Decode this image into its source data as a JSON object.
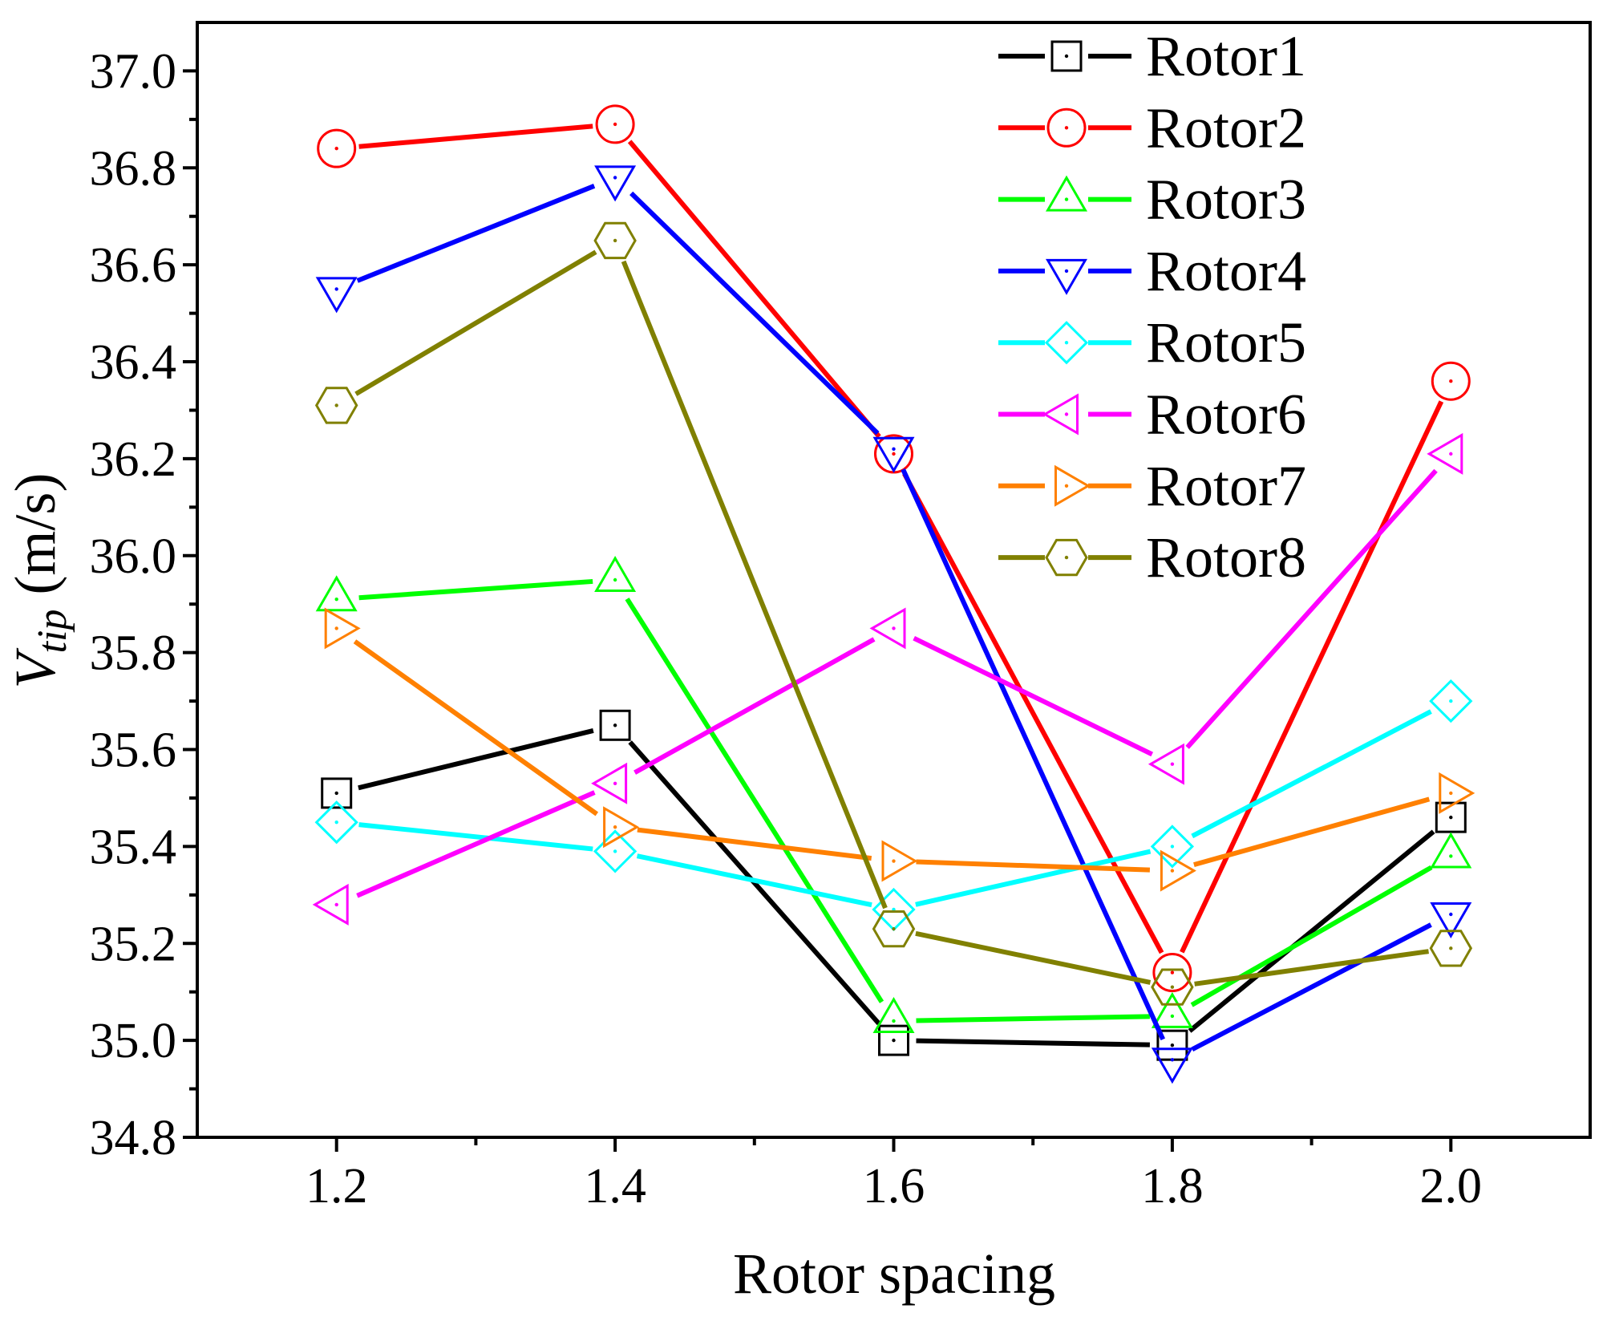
{
  "chart_data": {
    "type": "line",
    "xlabel": "Rotor spacing",
    "ylabel": {
      "symbol": "V",
      "subscript": "tip",
      "unit": "(m/s)"
    },
    "x": [
      1.2,
      1.4,
      1.6,
      1.8,
      2.0
    ],
    "xlim": [
      1.1,
      2.1
    ],
    "ylim": [
      34.8,
      37.1
    ],
    "xticks": [
      1.2,
      1.4,
      1.6,
      1.8,
      2.0
    ],
    "xtick_labels": [
      "1.2",
      "1.4",
      "1.6",
      "1.8",
      "2.0"
    ],
    "xminor_ticks": [
      1.3,
      1.5,
      1.7,
      1.9
    ],
    "yticks": [
      34.8,
      35.0,
      35.2,
      35.4,
      35.6,
      35.8,
      36.0,
      36.2,
      36.4,
      36.6,
      36.8,
      37.0
    ],
    "ytick_labels": [
      "34.8",
      "35.0",
      "35.2",
      "35.4",
      "35.6",
      "35.8",
      "36.0",
      "36.2",
      "36.4",
      "36.6",
      "36.8",
      "37.0"
    ],
    "yminor_ticks": [
      34.9,
      35.1,
      35.3,
      35.5,
      35.7,
      35.9,
      36.1,
      36.3,
      36.5,
      36.7,
      36.9
    ],
    "grid": false,
    "legend_position": "top-right",
    "series": [
      {
        "name": "Rotor1",
        "color": "#000000",
        "marker": "square",
        "values": [
          35.51,
          35.65,
          35.0,
          34.99,
          35.46
        ]
      },
      {
        "name": "Rotor2",
        "color": "#ff0000",
        "marker": "circle",
        "values": [
          36.84,
          36.89,
          36.21,
          35.14,
          36.36
        ]
      },
      {
        "name": "Rotor3",
        "color": "#00ff00",
        "marker": "triangle-up",
        "values": [
          35.91,
          35.95,
          35.04,
          35.05,
          35.38
        ]
      },
      {
        "name": "Rotor4",
        "color": "#0000ff",
        "marker": "triangle-down",
        "values": [
          36.55,
          36.78,
          36.22,
          34.96,
          35.26
        ]
      },
      {
        "name": "Rotor5",
        "color": "#00ffff",
        "marker": "diamond",
        "values": [
          35.45,
          35.39,
          35.27,
          35.4,
          35.7
        ]
      },
      {
        "name": "Rotor6",
        "color": "#ff00ff",
        "marker": "triangle-left",
        "values": [
          35.28,
          35.53,
          35.85,
          35.57,
          36.21
        ]
      },
      {
        "name": "Rotor7",
        "color": "#ff8000",
        "marker": "triangle-right",
        "values": [
          35.85,
          35.44,
          35.37,
          35.35,
          35.51
        ]
      },
      {
        "name": "Rotor8",
        "color": "#808000",
        "marker": "hexagon",
        "values": [
          36.31,
          36.65,
          35.23,
          35.11,
          35.19
        ]
      }
    ]
  }
}
